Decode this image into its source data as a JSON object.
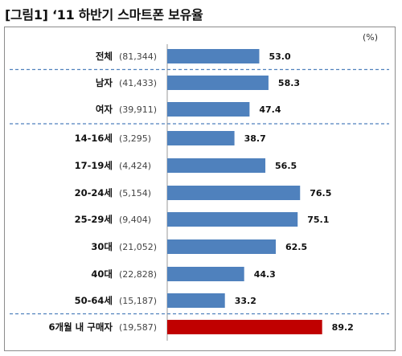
{
  "title": "[그림1] ‘11 하반기 스마트폰 보유율",
  "unit": "(%)",
  "chart_data": {
    "type": "bar",
    "orientation": "horizontal",
    "title": "[그림1] ‘11 하반기 스마트폰 보유율",
    "unit": "(%)",
    "categories": [
      "전체",
      "남자",
      "여자",
      "14-16세",
      "17-19세",
      "20-24세",
      "25-29세",
      "30대",
      "40대",
      "50-64세",
      "6개월 내 구매자"
    ],
    "sample_sizes": [
      "(81,344)",
      "(41,433)",
      "(39,911)",
      "(3,295)",
      "(4,424)",
      "(5,154)",
      "(9,404)",
      "(21,052)",
      "(22,828)",
      "(15,187)",
      "(19,587)"
    ],
    "values": [
      53.0,
      58.3,
      47.4,
      38.7,
      56.5,
      76.5,
      75.1,
      62.5,
      44.3,
      33.2,
      89.2
    ],
    "value_labels": [
      "53.0",
      "58.3",
      "47.4",
      "38.7",
      "56.5",
      "76.5",
      "75.1",
      "62.5",
      "44.3",
      "33.2",
      "89.2"
    ],
    "xlim": [
      0,
      100
    ],
    "colors": {
      "default": "#4f81bd",
      "highlight": "#c00000",
      "divider": "#4f81bd"
    },
    "highlight_index": 10,
    "grid": false
  }
}
